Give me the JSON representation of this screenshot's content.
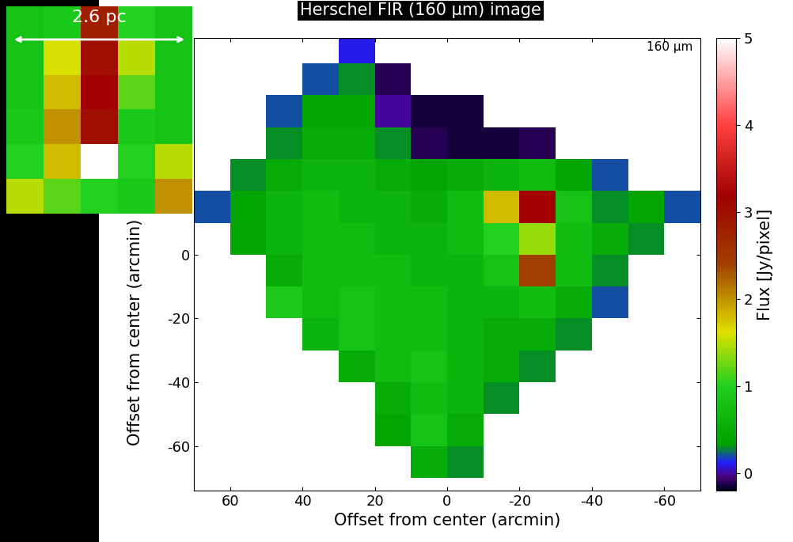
{
  "chart_data": {
    "type": "heatmap",
    "title": "Herschel FIR (160 μm) image",
    "annotation": "160 μm",
    "xlabel": "Offset from center (arcmin)",
    "ylabel": "Offset from center (arcmin)",
    "x_edges": [
      70,
      60,
      50,
      40,
      30,
      20,
      10,
      0,
      -10,
      -20,
      -30,
      -40,
      -50,
      -60,
      -70
    ],
    "y_edges": [
      70,
      60,
      50,
      40,
      30,
      20,
      10,
      0,
      -10,
      -20,
      -30,
      -40,
      -50,
      -60,
      -70
    ],
    "cells": [
      [
        null,
        null,
        null,
        null,
        0.1,
        null,
        null,
        null,
        null,
        null,
        null,
        null,
        null,
        null
      ],
      [
        null,
        null,
        null,
        0.2,
        0.3,
        -0.1,
        null,
        null,
        null,
        null,
        null,
        null,
        null,
        null
      ],
      [
        null,
        null,
        0.2,
        0.4,
        0.4,
        0.0,
        -0.15,
        -0.15,
        null,
        null,
        null,
        null,
        null,
        null
      ],
      [
        null,
        null,
        0.3,
        0.5,
        0.5,
        0.3,
        -0.1,
        -0.15,
        -0.15,
        -0.1,
        null,
        null,
        null,
        null
      ],
      [
        null,
        0.3,
        0.5,
        0.6,
        0.6,
        0.5,
        0.4,
        0.5,
        0.6,
        0.7,
        0.4,
        0.2,
        null,
        null
      ],
      [
        0.2,
        0.4,
        0.6,
        0.7,
        0.6,
        0.6,
        0.5,
        0.7,
        1.8,
        3.2,
        0.8,
        0.3,
        0.4,
        0.2
      ],
      [
        null,
        0.4,
        0.6,
        0.7,
        0.7,
        0.6,
        0.6,
        0.7,
        1.0,
        1.4,
        0.7,
        0.5,
        0.3,
        null
      ],
      [
        null,
        null,
        0.5,
        0.7,
        0.7,
        0.7,
        0.6,
        0.6,
        0.8,
        2.4,
        0.7,
        0.3,
        null,
        null
      ],
      [
        null,
        null,
        0.9,
        0.7,
        0.8,
        0.7,
        0.7,
        0.6,
        0.6,
        0.7,
        0.5,
        0.2,
        null,
        null
      ],
      [
        null,
        null,
        null,
        0.6,
        0.8,
        0.7,
        0.7,
        0.6,
        0.5,
        0.5,
        0.3,
        null,
        null,
        null
      ],
      [
        null,
        null,
        null,
        null,
        0.5,
        0.7,
        0.8,
        0.6,
        0.5,
        0.3,
        null,
        null,
        null,
        null
      ],
      [
        null,
        null,
        null,
        null,
        null,
        0.5,
        0.7,
        0.6,
        0.3,
        null,
        null,
        null,
        null,
        null
      ],
      [
        null,
        null,
        null,
        null,
        null,
        0.4,
        0.8,
        0.5,
        null,
        null,
        null,
        null,
        null,
        null
      ],
      [
        null,
        null,
        null,
        null,
        null,
        null,
        0.5,
        0.3,
        null,
        null,
        null,
        null,
        null,
        null
      ]
    ],
    "xlim": [
      70,
      -70
    ],
    "ylim": [
      -74,
      68
    ],
    "xticks": [
      60,
      40,
      20,
      0,
      -20,
      -40,
      -60
    ],
    "yticks": [
      -60,
      -40,
      -20,
      0
    ],
    "colorbar": {
      "label": "Flux [Jy/pixel]",
      "range": [
        -0.2,
        5
      ],
      "ticks": [
        0,
        1,
        2,
        3,
        4,
        5
      ]
    },
    "inset": {
      "label": "2.6 pc",
      "cells": [
        [
          0.8,
          0.9,
          2.8,
          1.0,
          0.8
        ],
        [
          0.8,
          1.6,
          3.0,
          1.5,
          0.8
        ],
        [
          0.8,
          1.8,
          3.2,
          1.2,
          0.8
        ],
        [
          0.9,
          2.0,
          3.0,
          0.9,
          0.8
        ],
        [
          1.0,
          1.8,
          5.0,
          1.0,
          1.5
        ],
        [
          1.5,
          1.2,
          1.0,
          0.9,
          2.0
        ]
      ]
    }
  }
}
